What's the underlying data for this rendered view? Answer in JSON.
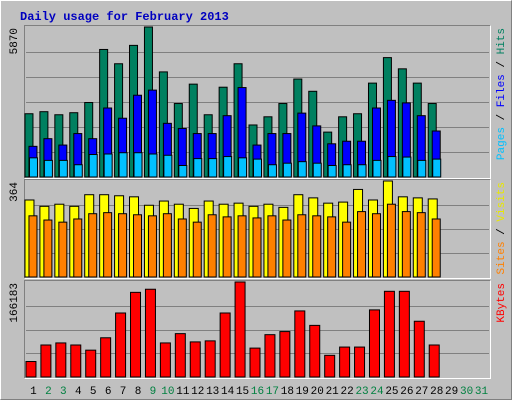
{
  "chart_data": [
    {
      "type": "bar",
      "title": "Daily usage for February 2013",
      "categories": [
        "1",
        "2",
        "3",
        "4",
        "5",
        "6",
        "7",
        "8",
        "9",
        "10",
        "11",
        "12",
        "13",
        "14",
        "15",
        "16",
        "17",
        "18",
        "19",
        "20",
        "21",
        "22",
        "23",
        "24",
        "25",
        "26",
        "27",
        "28",
        "29",
        "30",
        "31"
      ],
      "category_colors": [
        "#000000",
        "#008040",
        "#008040",
        "#000000",
        "#000000",
        "#000000",
        "#000000",
        "#000000",
        "#008040",
        "#008040",
        "#000000",
        "#000000",
        "#000000",
        "#000000",
        "#000000",
        "#008040",
        "#008040",
        "#000000",
        "#000000",
        "#000000",
        "#000000",
        "#000000",
        "#008040",
        "#008040",
        "#000000",
        "#000000",
        "#000000",
        "#000000",
        "#000000",
        "#008040",
        "#008040"
      ],
      "ylim": [
        0,
        5870
      ],
      "yticks": [
        5870
      ],
      "legend_separator": " / ",
      "series": [
        {
          "name": "Hits",
          "color": "#008060",
          "values": [
            2476,
            2556,
            2436,
            2516,
            2915,
            4991,
            4432,
            5151,
            5870,
            4113,
            2875,
            3634,
            2436,
            3514,
            4432,
            2036,
            2356,
            2875,
            3833,
            3354,
            1757,
            2356,
            2476,
            3674,
            4672,
            4233,
            3674,
            2875,
            null,
            null,
            null
          ]
        },
        {
          "name": "Files",
          "color": "#0000ff",
          "values": [
            1200,
            1500,
            1250,
            1700,
            1500,
            2700,
            2300,
            3200,
            3400,
            2100,
            1900,
            1700,
            1700,
            2400,
            3500,
            1250,
            1700,
            1700,
            2500,
            2000,
            1300,
            1400,
            1400,
            2700,
            3000,
            2900,
            2400,
            1800,
            null,
            null,
            null
          ]
        },
        {
          "name": "Pages",
          "color": "#00c0ff",
          "values": [
            750,
            650,
            650,
            480,
            880,
            900,
            950,
            950,
            900,
            850,
            450,
            720,
            720,
            800,
            750,
            700,
            480,
            540,
            600,
            540,
            450,
            480,
            480,
            650,
            800,
            780,
            650,
            700,
            null,
            null,
            null
          ]
        }
      ]
    },
    {
      "type": "bar",
      "ylim": [
        0,
        364
      ],
      "yticks": [
        364
      ],
      "legend_separator": " / ",
      "series": [
        {
          "name": "Visits",
          "color": "#ffff00",
          "values": [
            292,
            268,
            276,
            268,
            312,
            312,
            308,
            304,
            272,
            288,
            276,
            260,
            288,
            276,
            280,
            268,
            276,
            264,
            312,
            300,
            280,
            284,
            332,
            292,
            364,
            304,
            300,
            296,
            null,
            null,
            null
          ]
        },
        {
          "name": "Sites",
          "color": "#ff8000",
          "values": [
            232,
            216,
            208,
            220,
            240,
            244,
            240,
            236,
            232,
            240,
            220,
            208,
            236,
            228,
            232,
            224,
            232,
            216,
            236,
            232,
            228,
            208,
            248,
            240,
            276,
            248,
            244,
            220,
            null,
            null,
            null
          ]
        }
      ]
    },
    {
      "type": "bar",
      "ylim": [
        0,
        166183
      ],
      "yticks": [
        166183
      ],
      "series": [
        {
          "name": "KBytes",
          "color": "#ff0000",
          "values": [
            27090,
            55986,
            59598,
            55986,
            46956,
            68628,
            111972,
            148092,
            153510,
            59598,
            75852,
            61404,
            63210,
            111972,
            166183,
            50568,
            74046,
            79464,
            115584,
            90300,
            37926,
            52374,
            52374,
            117390,
            149898,
            149898,
            97524,
            55986,
            null,
            null,
            null
          ]
        }
      ]
    }
  ]
}
